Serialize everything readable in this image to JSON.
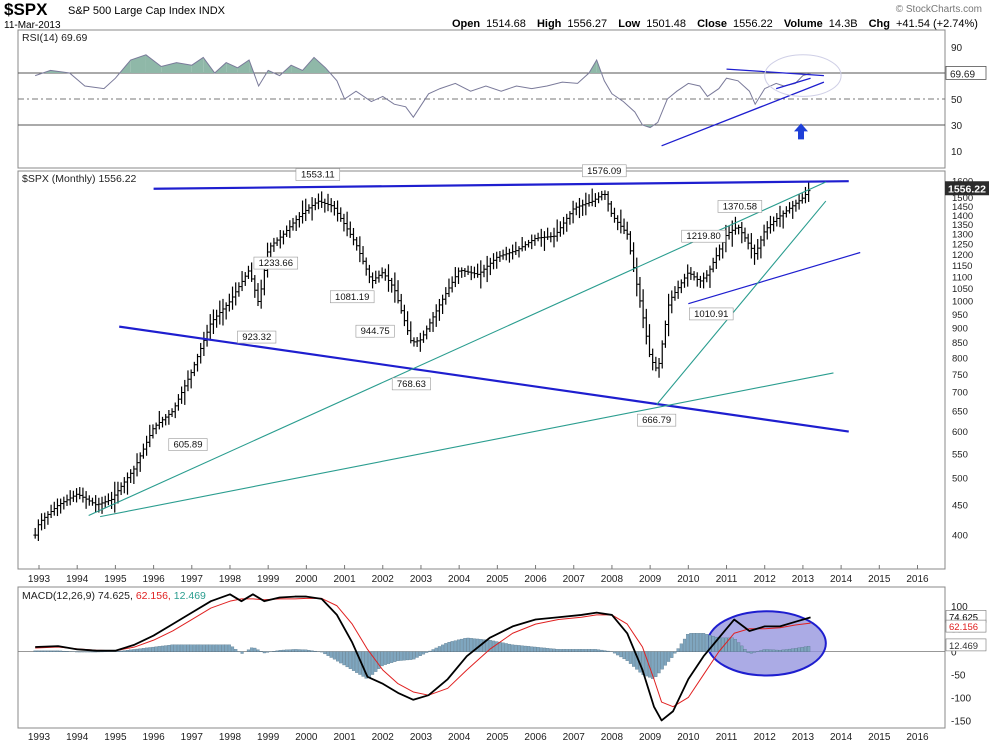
{
  "header": {
    "symbol": "$SPX",
    "description": "S&P 500 Large Cap Index",
    "exchange": "INDX",
    "date": "11-Mar-2013",
    "open_label": "Open",
    "open": "1514.68",
    "high_label": "High",
    "high": "1556.27",
    "low_label": "Low",
    "low": "1501.48",
    "close_label": "Close",
    "close": "1556.22",
    "volume_label": "Volume",
    "volume": "14.3B",
    "chg_label": "Chg",
    "chg": "+41.54 (+2.74%)",
    "watermark": "© StockCharts.com"
  },
  "colors": {
    "rsi_line": "#7a7a9a",
    "rsi_fill": "#8fb8a8",
    "price_bar": "#000000",
    "trend_blue": "#1e1ecf",
    "trend_teal": "#2a9d8f",
    "macd_line": "#000000",
    "signal_line": "#e02020",
    "histogram": "#7fa6bf",
    "ellipse_fill": "#8f8fdc",
    "arrow": "#1e3fd8",
    "last_box": "#2b2b2b"
  },
  "chart_data": [
    {
      "type": "line",
      "panel": "rsi",
      "legend": "RSI(14) 69.69",
      "last_value": "69.69",
      "ylim": [
        0,
        100
      ],
      "yticks": [
        10,
        30,
        50,
        70,
        90
      ],
      "reference_lines": [
        30,
        50,
        70
      ],
      "x": [
        1992.9,
        1993.3,
        1993.8,
        1994.2,
        1994.7,
        1995.0,
        1995.4,
        1995.8,
        1996.2,
        1996.6,
        1997.0,
        1997.3,
        1997.6,
        1997.9,
        1998.2,
        1998.5,
        1998.75,
        1999.0,
        1999.3,
        1999.6,
        1999.9,
        2000.2,
        2000.5,
        2000.8,
        2001.0,
        2001.3,
        2001.7,
        2002.0,
        2002.3,
        2002.6,
        2002.8,
        2003.2,
        2003.5,
        2003.9,
        2004.3,
        2004.7,
        2005.1,
        2005.5,
        2005.9,
        2006.3,
        2006.7,
        2007.1,
        2007.4,
        2007.6,
        2007.8,
        2008.0,
        2008.3,
        2008.6,
        2008.8,
        2009.0,
        2009.2,
        2009.45,
        2009.7,
        2010.0,
        2010.3,
        2010.5,
        2010.8,
        2011.0,
        2011.3,
        2011.6,
        2011.75,
        2012.0,
        2012.3,
        2012.5,
        2012.8,
        2013.0,
        2013.2
      ],
      "values": [
        68,
        72,
        70,
        60,
        58,
        66,
        80,
        84,
        75,
        78,
        76,
        82,
        70,
        78,
        74,
        80,
        60,
        72,
        68,
        76,
        72,
        82,
        74,
        64,
        50,
        56,
        48,
        52,
        46,
        44,
        36,
        54,
        58,
        62,
        56,
        60,
        56,
        60,
        58,
        60,
        63,
        62,
        70,
        80,
        64,
        54,
        48,
        40,
        30,
        28,
        32,
        50,
        56,
        62,
        60,
        52,
        58,
        66,
        64,
        56,
        46,
        58,
        62,
        60,
        62,
        68,
        69.69
      ],
      "annotations": [
        {
          "type": "trendline",
          "x0": 2009.3,
          "y0": 14,
          "x1": 2013.55,
          "y1": 63
        },
        {
          "type": "trendline",
          "x0": 2011.0,
          "y0": 73,
          "x1": 2013.55,
          "y1": 68
        },
        {
          "type": "trendline",
          "x0": 2012.3,
          "y0": 58,
          "x1": 2013.2,
          "y1": 66
        },
        {
          "type": "up_arrow",
          "x": 2012.95,
          "y": 22
        },
        {
          "type": "dashed_ellipse",
          "cx": 2013.0,
          "cy": 68,
          "rx_years": 1.0,
          "ry_values": 16
        }
      ]
    },
    {
      "type": "ohlc",
      "panel": "price",
      "legend": "$SPX (Monthly) 1556.22",
      "last_value": "1556.22",
      "scale": "log",
      "ylim": [
        360,
        1620
      ],
      "yticks": [
        400,
        450,
        500,
        550,
        600,
        650,
        700,
        750,
        800,
        850,
        900,
        950,
        1000,
        1050,
        1100,
        1150,
        1200,
        1250,
        1300,
        1350,
        1400,
        1450,
        1500,
        1550,
        1600
      ],
      "xticks": [
        "1993",
        "1994",
        "1995",
        "1996",
        "1997",
        "1998",
        "1999",
        "2000",
        "2001",
        "2002",
        "2003",
        "2004",
        "2005",
        "2006",
        "2007",
        "2008",
        "2009",
        "2010",
        "2011",
        "2012",
        "2013",
        "2014",
        "2015",
        "2016"
      ],
      "x": [
        1992.9,
        1993.0,
        1993.5,
        1994.0,
        1994.5,
        1994.9,
        1995.5,
        1996.0,
        1996.5,
        1997.0,
        1997.5,
        1998.0,
        1998.5,
        1998.75,
        1999.0,
        1999.4,
        1999.7,
        2000.0,
        2000.3,
        2000.7,
        2001.0,
        2001.3,
        2001.7,
        2002.0,
        2002.3,
        2002.75,
        2003.0,
        2003.5,
        2004.0,
        2004.5,
        2005.0,
        2005.5,
        2006.0,
        2006.5,
        2007.0,
        2007.5,
        2007.8,
        2008.0,
        2008.4,
        2008.8,
        2009.0,
        2009.2,
        2009.5,
        2010.0,
        2010.3,
        2010.5,
        2011.0,
        2011.3,
        2011.75,
        2012.0,
        2012.3,
        2012.6,
        2013.0,
        2013.2
      ],
      "values": [
        400,
        420,
        450,
        470,
        450,
        460,
        520,
        610,
        650,
        760,
        920,
        1000,
        1130,
        990,
        1230,
        1300,
        1370,
        1430,
        1480,
        1450,
        1350,
        1250,
        1080,
        1120,
        1050,
        850,
        860,
        990,
        1130,
        1110,
        1190,
        1220,
        1280,
        1290,
        1440,
        1480,
        1530,
        1400,
        1300,
        950,
        800,
        760,
        1000,
        1120,
        1080,
        1110,
        1300,
        1340,
        1200,
        1320,
        1380,
        1430,
        1500,
        1556
      ],
      "labels": [
        {
          "x": 1996.9,
          "y": 605.89,
          "text": "605.89"
        },
        {
          "x": 1998.7,
          "y": 923.32,
          "text": "923.32"
        },
        {
          "x": 1999.2,
          "y": 1233.66,
          "text": "1233.66"
        },
        {
          "x": 2000.3,
          "y": 1553.11,
          "text": "1553.11"
        },
        {
          "x": 2001.2,
          "y": 1081.19,
          "text": "1081.19"
        },
        {
          "x": 2001.8,
          "y": 944.75,
          "text": "944.75"
        },
        {
          "x": 2002.75,
          "y": 768.63,
          "text": "768.63"
        },
        {
          "x": 2007.8,
          "y": 1576.09,
          "text": "1576.09"
        },
        {
          "x": 2009.17,
          "y": 666.79,
          "text": "666.79"
        },
        {
          "x": 2010.4,
          "y": 1219.8,
          "text": "1219.80"
        },
        {
          "x": 2010.6,
          "y": 1010.91,
          "text": "1010.91"
        },
        {
          "x": 2011.35,
          "y": 1370.58,
          "text": "1370.58"
        }
      ],
      "trendlines": [
        {
          "color": "blue",
          "width": 2.2,
          "x0": 1996.0,
          "y0": 1553,
          "x1": 2014.2,
          "y1": 1600
        },
        {
          "color": "blue",
          "width": 2.2,
          "x0": 1995.1,
          "y0": 905,
          "x1": 2014.2,
          "y1": 600
        },
        {
          "color": "blue",
          "width": 1.2,
          "x0": 2010.0,
          "y0": 990,
          "x1": 2014.5,
          "y1": 1210
        },
        {
          "color": "teal",
          "width": 1.1,
          "x0": 1994.3,
          "y0": 432,
          "x1": 2013.6,
          "y1": 1595
        },
        {
          "color": "teal",
          "width": 1.1,
          "x0": 1994.6,
          "y0": 430,
          "x1": 2013.8,
          "y1": 755
        },
        {
          "color": "teal",
          "width": 1.1,
          "x0": 2009.17,
          "y0": 666.79,
          "x1": 2013.6,
          "y1": 1480
        }
      ]
    },
    {
      "type": "line",
      "panel": "macd",
      "legend_label": "MACD(12,26,9)",
      "macd_value": "74.625",
      "signal_value": "62.156",
      "histogram_value": "12.469",
      "ylim": [
        -160,
        130
      ],
      "yticks": [
        -150,
        -100,
        -50,
        0,
        50,
        100
      ],
      "xticks": [
        "1993",
        "1994",
        "1995",
        "1996",
        "1997",
        "1998",
        "1999",
        "2000",
        "2001",
        "2002",
        "2003",
        "2004",
        "2005",
        "2006",
        "2007",
        "2008",
        "2009",
        "2010",
        "2011",
        "2012",
        "2013",
        "2014",
        "2015",
        "2016"
      ],
      "x": [
        1992.9,
        1993.5,
        1994.0,
        1994.5,
        1995.0,
        1995.5,
        1996.0,
        1996.5,
        1997.0,
        1997.5,
        1998.0,
        1998.3,
        1998.6,
        1998.9,
        1999.3,
        1999.7,
        2000.0,
        2000.4,
        2000.8,
        2001.2,
        2001.6,
        2002.0,
        2002.4,
        2002.8,
        2003.2,
        2003.7,
        2004.2,
        2004.8,
        2005.4,
        2006.0,
        2006.6,
        2007.2,
        2007.6,
        2008.0,
        2008.4,
        2008.8,
        2009.1,
        2009.3,
        2009.6,
        2010.0,
        2010.4,
        2010.8,
        2011.2,
        2011.6,
        2012.0,
        2012.4,
        2012.8,
        2013.2
      ],
      "series": [
        {
          "name": "MACD",
          "values": [
            10,
            12,
            5,
            2,
            2,
            15,
            35,
            60,
            85,
            110,
            125,
            110,
            125,
            110,
            118,
            120,
            120,
            115,
            80,
            20,
            -55,
            -70,
            -90,
            -105,
            -95,
            -60,
            -10,
            30,
            55,
            70,
            75,
            80,
            85,
            80,
            40,
            -40,
            -120,
            -150,
            -130,
            -60,
            -10,
            30,
            70,
            45,
            55,
            55,
            65,
            74.6
          ]
        },
        {
          "name": "Signal",
          "values": [
            8,
            10,
            6,
            3,
            2,
            10,
            25,
            45,
            70,
            95,
            110,
            115,
            115,
            113,
            115,
            115,
            116,
            116,
            100,
            60,
            5,
            -40,
            -70,
            -88,
            -95,
            -80,
            -40,
            5,
            40,
            60,
            70,
            75,
            80,
            80,
            60,
            10,
            -60,
            -110,
            -120,
            -100,
            -50,
            0,
            40,
            50,
            50,
            52,
            58,
            62.2
          ]
        },
        {
          "name": "Histogram",
          "values": [
            2,
            2,
            -1,
            -1,
            0,
            5,
            10,
            15,
            15,
            15,
            15,
            -5,
            10,
            -3,
            3,
            5,
            4,
            -1,
            -20,
            -40,
            -60,
            -30,
            -20,
            -17,
            0,
            20,
            30,
            25,
            15,
            10,
            5,
            5,
            5,
            0,
            -20,
            -50,
            -60,
            -40,
            -10,
            40,
            40,
            30,
            30,
            -5,
            5,
            3,
            7,
            12.5
          ]
        }
      ],
      "annotations": [
        {
          "type": "filled_ellipse",
          "cx": 2012.05,
          "cy": 18,
          "rx_years": 1.55,
          "ry_values": 70
        }
      ]
    }
  ]
}
